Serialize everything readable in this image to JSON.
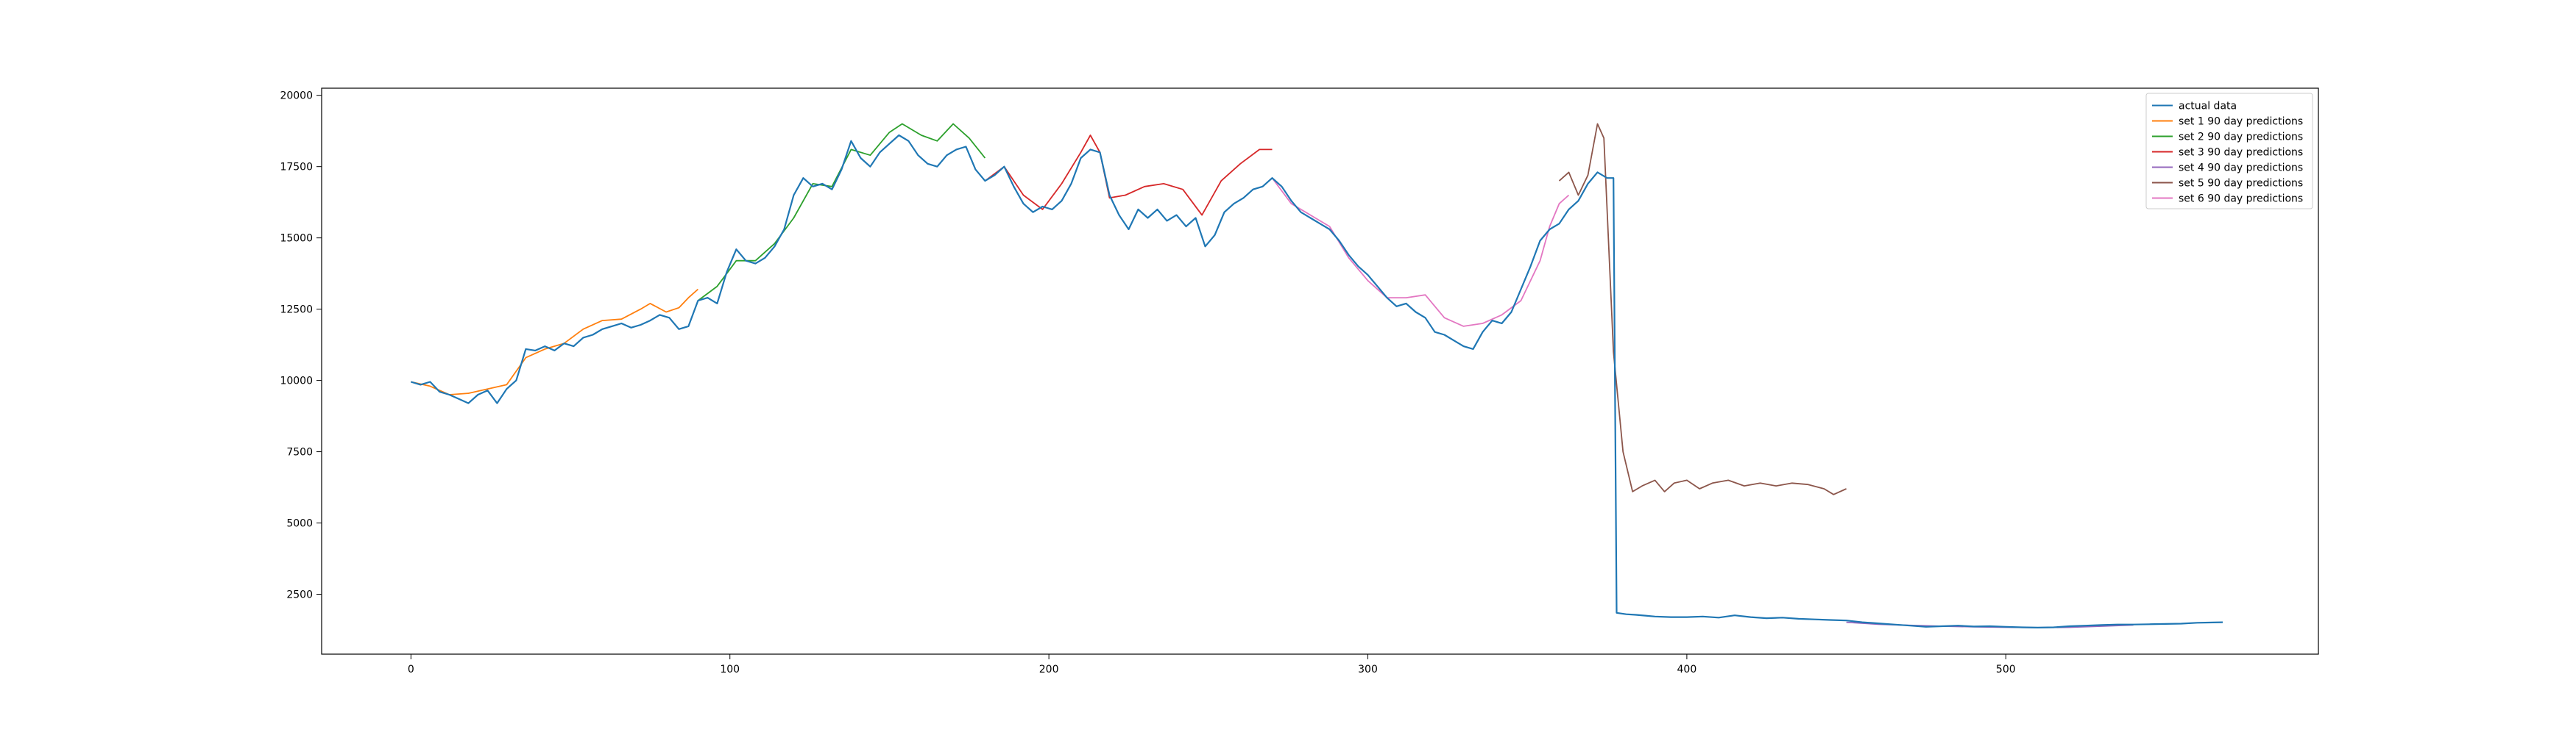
{
  "chart_data": {
    "type": "line",
    "title": "",
    "xlabel": "",
    "ylabel": "",
    "xlim": [
      -28,
      598
    ],
    "ylim": [
      400,
      20250
    ],
    "xticks": [
      0,
      100,
      200,
      300,
      400,
      500
    ],
    "yticks": [
      2500,
      5000,
      7500,
      10000,
      12500,
      15000,
      17500,
      20000
    ],
    "grid": false,
    "legend_position": "top-right",
    "series": [
      {
        "name": "actual data",
        "color": "#1f77b4",
        "points": [
          [
            0,
            9950
          ],
          [
            3,
            9850
          ],
          [
            6,
            9950
          ],
          [
            9,
            9600
          ],
          [
            12,
            9500
          ],
          [
            15,
            9350
          ],
          [
            18,
            9200
          ],
          [
            21,
            9500
          ],
          [
            24,
            9650
          ],
          [
            27,
            9200
          ],
          [
            30,
            9700
          ],
          [
            33,
            10000
          ],
          [
            36,
            11100
          ],
          [
            39,
            11050
          ],
          [
            42,
            11200
          ],
          [
            45,
            11050
          ],
          [
            48,
            11300
          ],
          [
            51,
            11200
          ],
          [
            54,
            11500
          ],
          [
            57,
            11600
          ],
          [
            60,
            11800
          ],
          [
            63,
            11900
          ],
          [
            66,
            12000
          ],
          [
            69,
            11850
          ],
          [
            72,
            11950
          ],
          [
            75,
            12100
          ],
          [
            78,
            12300
          ],
          [
            81,
            12200
          ],
          [
            84,
            11800
          ],
          [
            87,
            11900
          ],
          [
            90,
            12800
          ],
          [
            93,
            12900
          ],
          [
            96,
            12700
          ],
          [
            99,
            13800
          ],
          [
            102,
            14600
          ],
          [
            105,
            14200
          ],
          [
            108,
            14100
          ],
          [
            111,
            14300
          ],
          [
            114,
            14700
          ],
          [
            117,
            15300
          ],
          [
            120,
            16500
          ],
          [
            123,
            17100
          ],
          [
            126,
            16800
          ],
          [
            129,
            16900
          ],
          [
            132,
            16700
          ],
          [
            135,
            17400
          ],
          [
            138,
            18400
          ],
          [
            141,
            17800
          ],
          [
            144,
            17500
          ],
          [
            147,
            18000
          ],
          [
            150,
            18300
          ],
          [
            153,
            18600
          ],
          [
            156,
            18400
          ],
          [
            159,
            17900
          ],
          [
            162,
            17600
          ],
          [
            165,
            17500
          ],
          [
            168,
            17900
          ],
          [
            171,
            18100
          ],
          [
            174,
            18200
          ],
          [
            177,
            17400
          ],
          [
            180,
            17000
          ],
          [
            183,
            17200
          ],
          [
            186,
            17500
          ],
          [
            189,
            16800
          ],
          [
            192,
            16200
          ],
          [
            195,
            15900
          ],
          [
            198,
            16100
          ],
          [
            201,
            16000
          ],
          [
            204,
            16300
          ],
          [
            207,
            16900
          ],
          [
            210,
            17800
          ],
          [
            213,
            18100
          ],
          [
            216,
            18000
          ],
          [
            219,
            16500
          ],
          [
            222,
            15800
          ],
          [
            225,
            15300
          ],
          [
            228,
            16000
          ],
          [
            231,
            15700
          ],
          [
            234,
            16000
          ],
          [
            237,
            15600
          ],
          [
            240,
            15800
          ],
          [
            243,
            15400
          ],
          [
            246,
            15700
          ],
          [
            249,
            14700
          ],
          [
            252,
            15100
          ],
          [
            255,
            15900
          ],
          [
            258,
            16200
          ],
          [
            261,
            16400
          ],
          [
            264,
            16700
          ],
          [
            267,
            16800
          ],
          [
            270,
            17100
          ],
          [
            273,
            16800
          ],
          [
            276,
            16300
          ],
          [
            279,
            15900
          ],
          [
            282,
            15700
          ],
          [
            285,
            15500
          ],
          [
            288,
            15300
          ],
          [
            291,
            14900
          ],
          [
            294,
            14400
          ],
          [
            297,
            14000
          ],
          [
            300,
            13700
          ],
          [
            303,
            13300
          ],
          [
            306,
            12900
          ],
          [
            309,
            12600
          ],
          [
            312,
            12700
          ],
          [
            315,
            12400
          ],
          [
            318,
            12200
          ],
          [
            321,
            11700
          ],
          [
            324,
            11600
          ],
          [
            327,
            11400
          ],
          [
            330,
            11200
          ],
          [
            333,
            11100
          ],
          [
            336,
            11700
          ],
          [
            339,
            12100
          ],
          [
            342,
            12000
          ],
          [
            345,
            12400
          ],
          [
            348,
            13200
          ],
          [
            351,
            14000
          ],
          [
            354,
            14900
          ],
          [
            357,
            15300
          ],
          [
            360,
            15500
          ],
          [
            363,
            16000
          ],
          [
            366,
            16300
          ],
          [
            369,
            16900
          ],
          [
            372,
            17300
          ],
          [
            375,
            17100
          ],
          [
            377,
            17100
          ],
          [
            378,
            1850
          ],
          [
            381,
            1800
          ],
          [
            384,
            1780
          ],
          [
            387,
            1750
          ],
          [
            390,
            1720
          ],
          [
            395,
            1700
          ],
          [
            400,
            1700
          ],
          [
            405,
            1720
          ],
          [
            410,
            1680
          ],
          [
            415,
            1760
          ],
          [
            420,
            1700
          ],
          [
            425,
            1660
          ],
          [
            430,
            1680
          ],
          [
            435,
            1640
          ],
          [
            440,
            1620
          ],
          [
            445,
            1600
          ],
          [
            450,
            1580
          ],
          [
            455,
            1520
          ],
          [
            460,
            1480
          ],
          [
            465,
            1440
          ],
          [
            470,
            1400
          ],
          [
            475,
            1360
          ],
          [
            480,
            1380
          ],
          [
            485,
            1400
          ],
          [
            490,
            1370
          ],
          [
            495,
            1380
          ],
          [
            500,
            1360
          ],
          [
            505,
            1340
          ],
          [
            510,
            1330
          ],
          [
            515,
            1340
          ],
          [
            520,
            1380
          ],
          [
            525,
            1400
          ],
          [
            530,
            1420
          ],
          [
            535,
            1440
          ],
          [
            540,
            1440
          ],
          [
            545,
            1450
          ],
          [
            550,
            1460
          ],
          [
            555,
            1470
          ],
          [
            560,
            1500
          ],
          [
            565,
            1510
          ],
          [
            568,
            1520
          ]
        ]
      },
      {
        "name": "set 1 90 day predictions",
        "color": "#ff7f0e",
        "points": [
          [
            0,
            9950
          ],
          [
            6,
            9800
          ],
          [
            12,
            9500
          ],
          [
            18,
            9550
          ],
          [
            24,
            9700
          ],
          [
            30,
            9850
          ],
          [
            36,
            10800
          ],
          [
            42,
            11100
          ],
          [
            48,
            11300
          ],
          [
            54,
            11800
          ],
          [
            60,
            12100
          ],
          [
            66,
            12150
          ],
          [
            72,
            12500
          ],
          [
            75,
            12700
          ],
          [
            80,
            12400
          ],
          [
            84,
            12550
          ],
          [
            87,
            12900
          ],
          [
            90,
            13200
          ]
        ]
      },
      {
        "name": "set 2 90 day predictions",
        "color": "#2ca02c",
        "points": [
          [
            90,
            12800
          ],
          [
            96,
            13300
          ],
          [
            102,
            14200
          ],
          [
            108,
            14200
          ],
          [
            114,
            14800
          ],
          [
            120,
            15700
          ],
          [
            126,
            16900
          ],
          [
            132,
            16800
          ],
          [
            138,
            18100
          ],
          [
            144,
            17900
          ],
          [
            150,
            18700
          ],
          [
            154,
            19000
          ],
          [
            160,
            18600
          ],
          [
            165,
            18400
          ],
          [
            170,
            19000
          ],
          [
            175,
            18500
          ],
          [
            180,
            17800
          ]
        ]
      },
      {
        "name": "set 3 90 day predictions",
        "color": "#d62728",
        "points": [
          [
            180,
            17000
          ],
          [
            186,
            17500
          ],
          [
            192,
            16500
          ],
          [
            198,
            16000
          ],
          [
            204,
            16900
          ],
          [
            210,
            18000
          ],
          [
            213,
            18600
          ],
          [
            216,
            18000
          ],
          [
            219,
            16400
          ],
          [
            224,
            16500
          ],
          [
            230,
            16800
          ],
          [
            236,
            16900
          ],
          [
            242,
            16700
          ],
          [
            248,
            15800
          ],
          [
            254,
            17000
          ],
          [
            260,
            17600
          ],
          [
            266,
            18100
          ],
          [
            270,
            18100
          ]
        ]
      },
      {
        "name": "set 4 90 day predictions",
        "color": "#9467bd",
        "points": [
          [
            450,
            1520
          ],
          [
            460,
            1450
          ],
          [
            470,
            1410
          ],
          [
            480,
            1380
          ],
          [
            490,
            1360
          ],
          [
            500,
            1340
          ],
          [
            510,
            1330
          ],
          [
            520,
            1340
          ],
          [
            530,
            1380
          ],
          [
            540,
            1420
          ]
        ]
      },
      {
        "name": "set 5 90 day predictions",
        "color": "#8c564b",
        "points": [
          [
            360,
            17000
          ],
          [
            363,
            17300
          ],
          [
            366,
            16500
          ],
          [
            369,
            17200
          ],
          [
            372,
            19000
          ],
          [
            374,
            18500
          ],
          [
            377,
            11000
          ],
          [
            380,
            7500
          ],
          [
            383,
            6100
          ],
          [
            386,
            6300
          ],
          [
            390,
            6500
          ],
          [
            393,
            6100
          ],
          [
            396,
            6400
          ],
          [
            400,
            6500
          ],
          [
            404,
            6200
          ],
          [
            408,
            6400
          ],
          [
            413,
            6500
          ],
          [
            418,
            6300
          ],
          [
            423,
            6400
          ],
          [
            428,
            6300
          ],
          [
            433,
            6400
          ],
          [
            438,
            6350
          ],
          [
            443,
            6200
          ],
          [
            446,
            6000
          ],
          [
            450,
            6200
          ]
        ]
      },
      {
        "name": "set 6 90 day predictions",
        "color": "#e377c2",
        "points": [
          [
            270,
            17100
          ],
          [
            276,
            16200
          ],
          [
            282,
            15800
          ],
          [
            288,
            15400
          ],
          [
            294,
            14300
          ],
          [
            300,
            13500
          ],
          [
            306,
            12900
          ],
          [
            312,
            12900
          ],
          [
            318,
            13000
          ],
          [
            324,
            12200
          ],
          [
            330,
            11900
          ],
          [
            336,
            12000
          ],
          [
            342,
            12300
          ],
          [
            348,
            12800
          ],
          [
            354,
            14200
          ],
          [
            357,
            15400
          ],
          [
            360,
            16200
          ],
          [
            363,
            16500
          ]
        ]
      }
    ]
  }
}
